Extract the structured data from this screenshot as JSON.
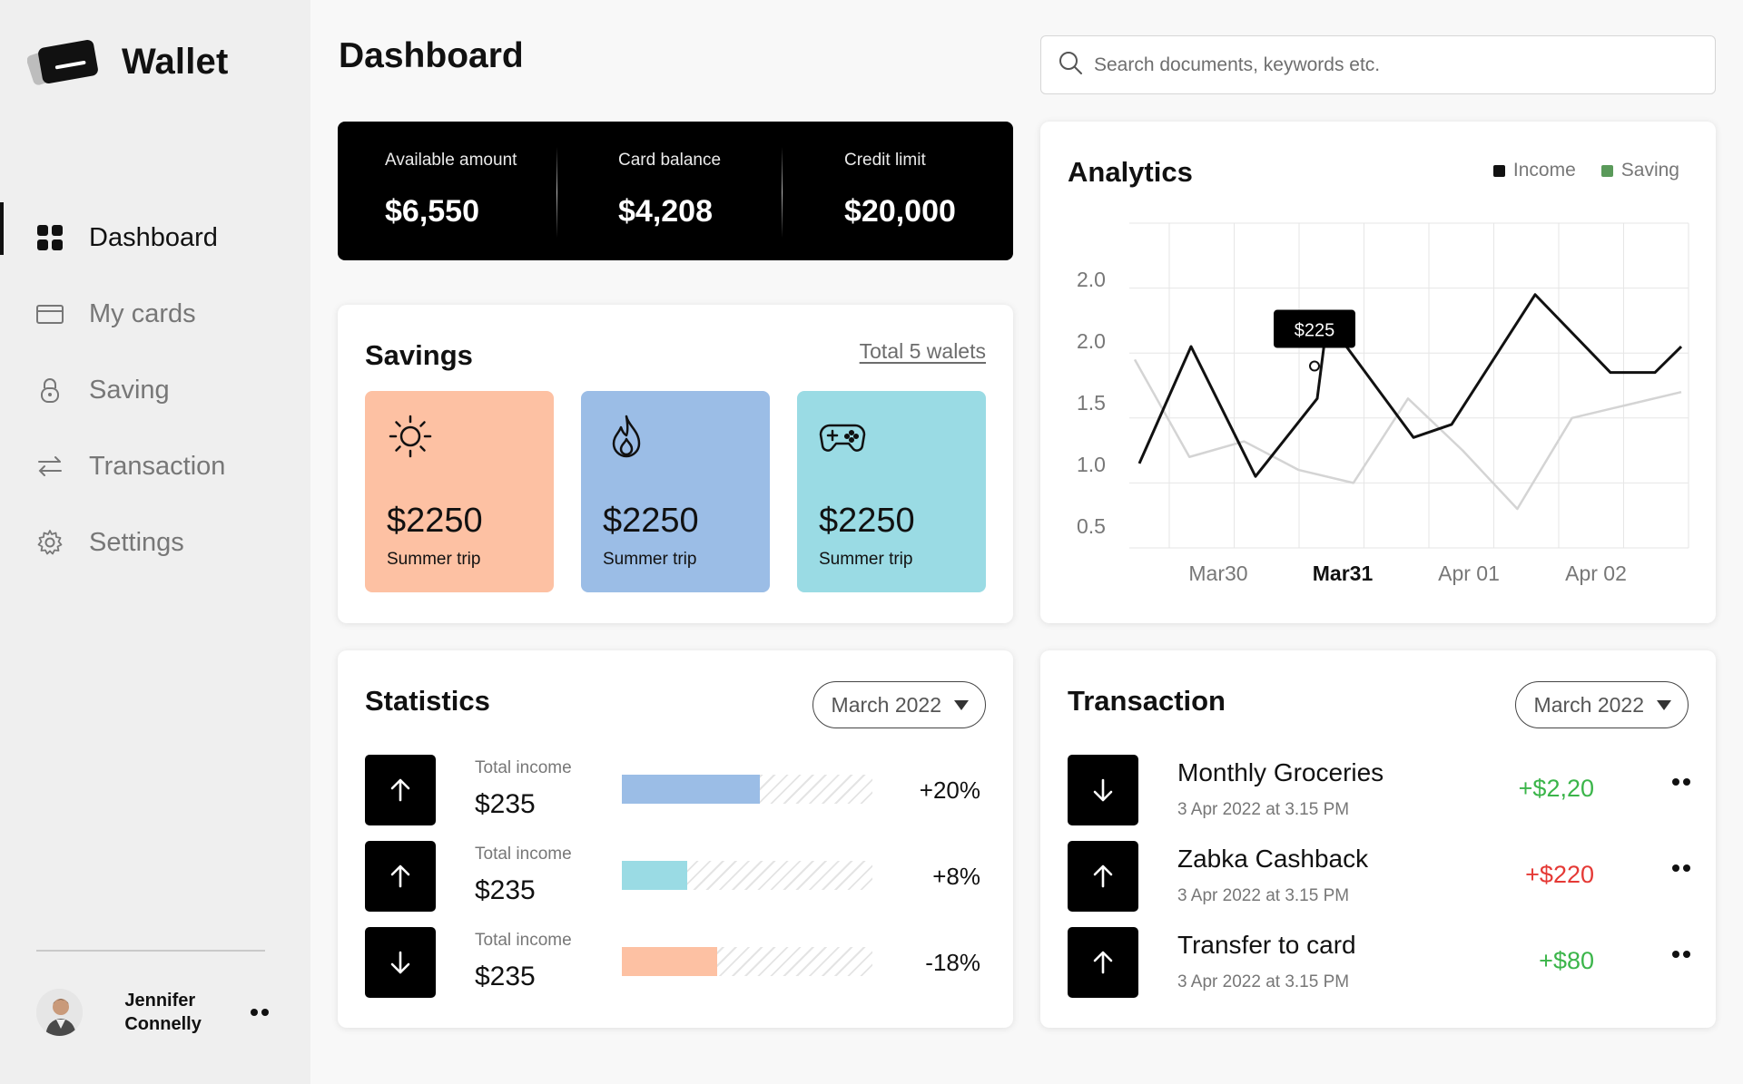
{
  "app": {
    "name": "Wallet"
  },
  "sidebar": {
    "items": [
      {
        "label": "Dashboard",
        "icon": "grid-icon",
        "active": true
      },
      {
        "label": "My cards",
        "icon": "card-icon",
        "active": false
      },
      {
        "label": "Saving",
        "icon": "lock-icon",
        "active": false
      },
      {
        "label": "Transaction",
        "icon": "transfer-icon",
        "active": false
      },
      {
        "label": "Settings",
        "icon": "gear-icon",
        "active": false
      }
    ],
    "user": {
      "name": "Jennifer Connelly"
    }
  },
  "header": {
    "title": "Dashboard",
    "search_placeholder": "Search documents, keywords etc."
  },
  "balance": [
    {
      "label": "Available amount",
      "value": "$6,550"
    },
    {
      "label": "Card balance",
      "value": "$4,208"
    },
    {
      "label": "Credit limit",
      "value": "$20,000"
    }
  ],
  "savings": {
    "title": "Savings",
    "link": "Total 5 walets",
    "tiles": [
      {
        "amount": "$2250",
        "label": "Summer trip",
        "icon": "sun-icon",
        "color": "#fdc1a3"
      },
      {
        "amount": "$2250",
        "label": "Summer trip",
        "icon": "flame-icon",
        "color": "#9bbde6"
      },
      {
        "amount": "$2250",
        "label": "Summer trip",
        "icon": "gamepad-icon",
        "color": "#9adbe4"
      }
    ]
  },
  "analytics": {
    "title": "Analytics",
    "legend": [
      {
        "name": "Income",
        "color": "#111111"
      },
      {
        "name": "Saving",
        "color": "#5a9a5a"
      }
    ],
    "tooltip": "$225"
  },
  "chart_data": {
    "type": "line",
    "y_ticks": [
      "2.0",
      "2.0",
      "1.5",
      "1.0",
      "0.5"
    ],
    "x_ticks": [
      "Mar30",
      "Mar31",
      "Apr 01",
      "Apr 02"
    ],
    "highlighted_x": "Mar31",
    "series": [
      {
        "name": "Income",
        "color": "#111111",
        "values": [
          0.65,
          1.55,
          0.55,
          1.15,
          1.75,
          0.85,
          0.95,
          1.95,
          1.35,
          1.35,
          1.55
        ]
      },
      {
        "name": "Saving",
        "color": "#d4d4d4",
        "values": [
          1.45,
          0.7,
          0.82,
          0.6,
          0.5,
          1.15,
          0.75,
          0.3,
          1.0,
          1.1,
          1.2
        ]
      }
    ],
    "ylim": [
      0.0,
      2.5
    ],
    "grid": true,
    "legend_position": "top-right"
  },
  "statistics": {
    "title": "Statistics",
    "period": "March 2022",
    "rows": [
      {
        "direction": "up",
        "label": "Total income",
        "value": "$235",
        "pct": "+20%",
        "fill": 0.55,
        "color": "#9bbde6"
      },
      {
        "direction": "up",
        "label": "Total income",
        "value": "$235",
        "pct": "+8%",
        "fill": 0.26,
        "color": "#9adbe4"
      },
      {
        "direction": "down",
        "label": "Total income",
        "value": "$235",
        "pct": "-18%",
        "fill": 0.38,
        "color": "#fdc1a3"
      }
    ]
  },
  "transactions": {
    "title": "Transaction",
    "period": "March 2022",
    "rows": [
      {
        "direction": "down",
        "name": "Monthly Groceries",
        "date": "3 Apr 2022 at 3.15 PM",
        "amount": "+$2,20",
        "color": "#3bb54a"
      },
      {
        "direction": "up",
        "name": "Zabka Cashback",
        "date": "3 Apr 2022 at 3.15 PM",
        "amount": "+$220",
        "color": "#e53935"
      },
      {
        "direction": "up",
        "name": "Transfer to card",
        "date": "3 Apr 2022 at 3.15 PM",
        "amount": "+$80",
        "color": "#3bb54a"
      }
    ]
  }
}
